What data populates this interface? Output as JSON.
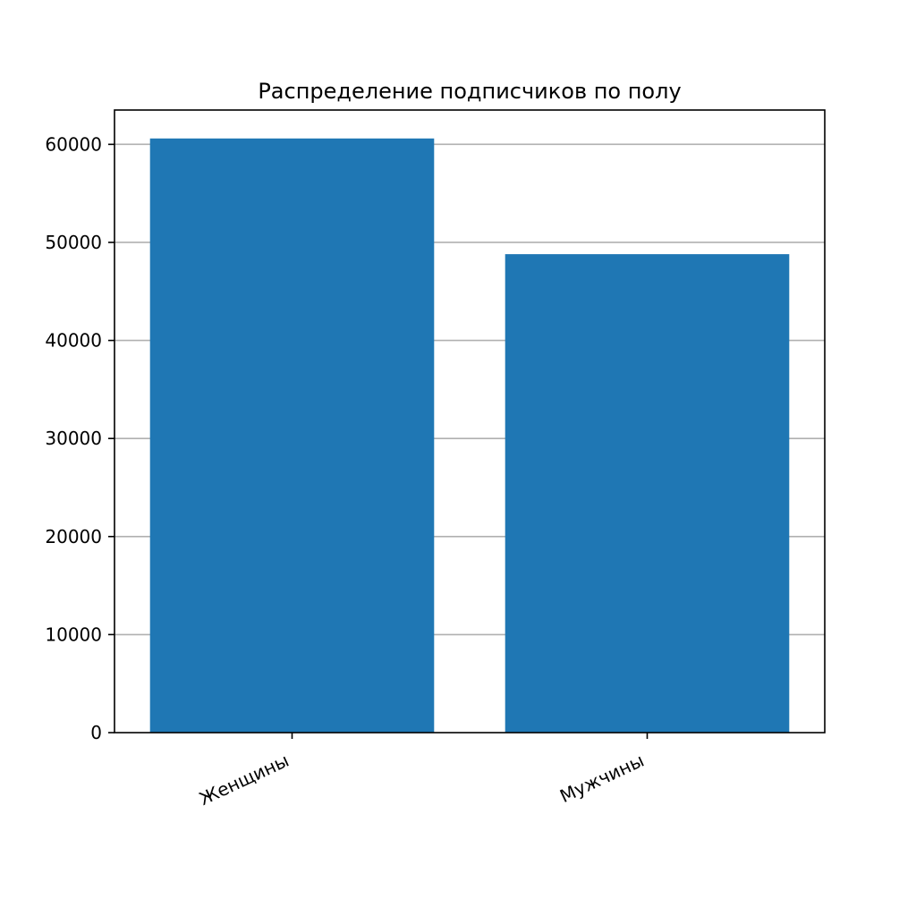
{
  "chart_data": {
    "type": "bar",
    "title": "Распределение подписчиков по полу",
    "xlabel": "",
    "ylabel": "",
    "categories": [
      "Женщины",
      "Мужчины"
    ],
    "values": [
      60600,
      48800
    ],
    "ylim": [
      0,
      63500
    ],
    "yticks": [
      0,
      10000,
      20000,
      30000,
      40000,
      50000,
      60000
    ],
    "ytick_labels": [
      "0",
      "10000",
      "20000",
      "30000",
      "40000",
      "50000",
      "60000"
    ],
    "grid": "y",
    "bar_color": "#1f77b4",
    "grid_color": "#b0b0b0"
  }
}
